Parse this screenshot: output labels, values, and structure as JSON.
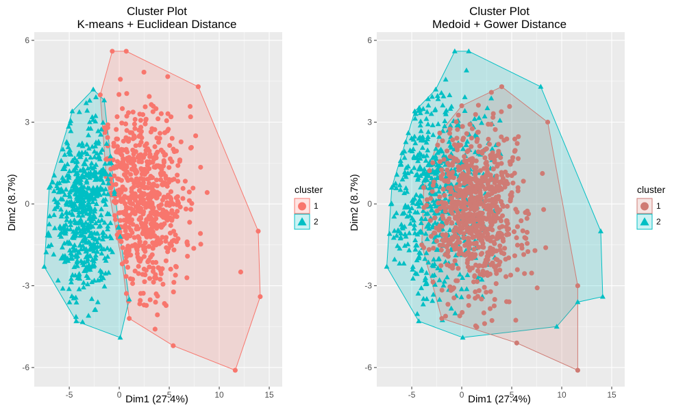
{
  "chart_data": [
    {
      "type": "scatter",
      "title": "Cluster Plot",
      "subtitle": "K-means + Euclidean Distance",
      "xlabel": "Dim1 (27.4%)",
      "ylabel": "Dim2 (8.7%)",
      "xlim": [
        -8.5,
        16.3
      ],
      "ylim": [
        -6.7,
        6.3
      ],
      "xticks": [
        -5,
        0,
        5,
        10,
        15
      ],
      "yticks": [
        -6,
        -3,
        0,
        3,
        6
      ],
      "grid": true,
      "legend": {
        "title": "cluster",
        "position": "right",
        "entries": [
          "1",
          "2"
        ]
      },
      "series": [
        {
          "name": "1",
          "marker": "circle",
          "color": "#F8766D",
          "hull": [
            [
              -0.7,
              5.6
            ],
            [
              0.7,
              5.6
            ],
            [
              7.9,
              4.3
            ],
            [
              13.9,
              -1.0
            ],
            [
              14.1,
              -3.4
            ],
            [
              11.6,
              -6.1
            ],
            [
              5.4,
              -5.2
            ],
            [
              1.0,
              -4.2
            ],
            [
              0.3,
              -2.2
            ],
            [
              -1.3,
              1.0
            ],
            [
              -1.9,
              4.0
            ]
          ],
          "cloud": {
            "count": 700,
            "center": [
              2.0,
              0.2
            ],
            "sd": [
              2.2,
              1.7
            ],
            "seed": 11
          }
        },
        {
          "name": "2",
          "marker": "triangle",
          "color": "#00BFC4",
          "hull": [
            [
              -2.6,
              4.2
            ],
            [
              -1.5,
              3.8
            ],
            [
              -0.8,
              1.5
            ],
            [
              0.1,
              -1.2
            ],
            [
              1.0,
              -3.5
            ],
            [
              0.1,
              -4.9
            ],
            [
              -4.3,
              -4.3
            ],
            [
              -7.5,
              -2.3
            ],
            [
              -7.0,
              0.6
            ],
            [
              -4.7,
              3.4
            ]
          ],
          "cloud": {
            "count": 600,
            "center": [
              -3.8,
              -0.3
            ],
            "sd": [
              1.6,
              1.6
            ],
            "seed": 23
          }
        }
      ]
    },
    {
      "type": "scatter",
      "title": "Cluster Plot",
      "subtitle": "Medoid + Gower Distance",
      "xlabel": "Dim1 (27.4%)",
      "ylabel": "Dim2 (8.7%)",
      "xlim": [
        -8.5,
        16.3
      ],
      "ylim": [
        -6.7,
        6.3
      ],
      "xticks": [
        -5,
        0,
        5,
        10,
        15
      ],
      "yticks": [
        -6,
        -3,
        0,
        3,
        6
      ],
      "grid": true,
      "legend": {
        "title": "cluster",
        "position": "right",
        "entries": [
          "1",
          "2"
        ]
      },
      "series": [
        {
          "name": "2",
          "marker": "triangle",
          "color": "#00BFC4",
          "hull": [
            [
              0.7,
              5.6
            ],
            [
              7.9,
              4.3
            ],
            [
              13.9,
              -1.0
            ],
            [
              14.1,
              -3.4
            ],
            [
              11.6,
              -3.6
            ],
            [
              9.5,
              -4.5
            ],
            [
              0.1,
              -4.9
            ],
            [
              -4.3,
              -4.3
            ],
            [
              -7.5,
              -2.3
            ],
            [
              -7.0,
              0.6
            ],
            [
              -4.7,
              3.4
            ],
            [
              -2.6,
              4.2
            ],
            [
              -0.7,
              5.6
            ]
          ],
          "cloud": {
            "count": 600,
            "center": [
              -2.5,
              0.5
            ],
            "sd": [
              2.6,
              1.9
            ],
            "seed": 37
          }
        },
        {
          "name": "1",
          "marker": "circle",
          "color": "#CF7B74",
          "hull": [
            [
              4.0,
              4.3
            ],
            [
              8.6,
              3.0
            ],
            [
              11.6,
              -3.0
            ],
            [
              11.6,
              -6.1
            ],
            [
              5.5,
              -5.1
            ],
            [
              -2.0,
              -4.2
            ],
            [
              -4.0,
              -1.5
            ],
            [
              -3.8,
              0.6
            ],
            [
              -2.2,
              2.6
            ],
            [
              0.0,
              3.6
            ]
          ],
          "cloud": {
            "count": 800,
            "center": [
              1.5,
              -0.3
            ],
            "sd": [
              2.4,
              1.6
            ],
            "seed": 53
          }
        }
      ]
    }
  ]
}
